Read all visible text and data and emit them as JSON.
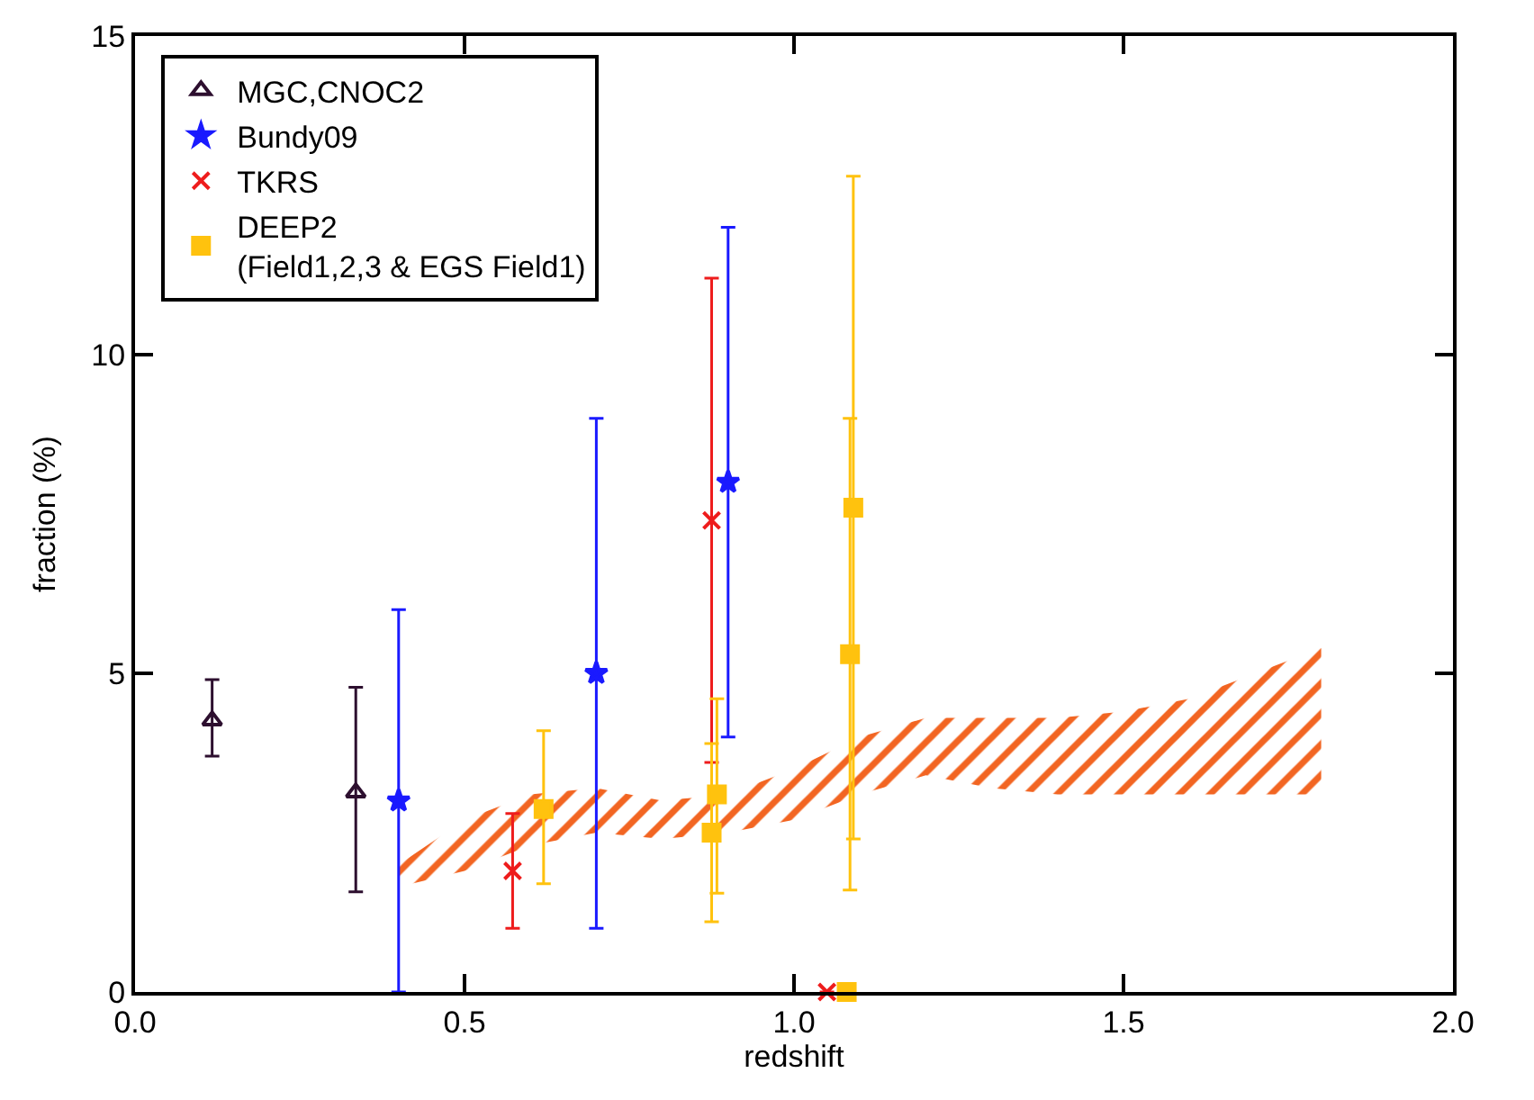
{
  "chart_data": {
    "type": "scatter",
    "xlabel": "redshift",
    "ylabel": "fraction (%)",
    "xlim": [
      0,
      2
    ],
    "ylim": [
      0,
      15
    ],
    "xticks": [
      {
        "value": 0,
        "label": "0.0"
      },
      {
        "value": 0.5,
        "label": "0.5"
      },
      {
        "value": 1,
        "label": "1.0"
      },
      {
        "value": 1.5,
        "label": "1.5"
      },
      {
        "value": 2,
        "label": "2.0"
      }
    ],
    "yticks": [
      0,
      5,
      10,
      15
    ],
    "legend": "top left",
    "series": [
      {
        "type": "line",
        "color": "#f26522",
        "x": [
          0.4,
          0.5,
          0.6,
          0.7,
          0.8,
          0.9,
          1.0,
          1.1,
          1.2,
          1.3,
          1.4,
          1.5,
          1.6,
          1.7,
          1.8
        ],
        "values": [
          null,
          null,
          null,
          null,
          null,
          null,
          null,
          null,
          null,
          null,
          null,
          null,
          null,
          null,
          null
        ],
        "upper": [
          2.0,
          2.7,
          3.1,
          3.2,
          3.0,
          3.1,
          3.5,
          4.0,
          4.3,
          4.3,
          4.3,
          4.4,
          4.6,
          5.0,
          5.4
        ],
        "lower": [
          1.65,
          1.9,
          2.3,
          2.5,
          2.4,
          2.5,
          2.7,
          3.1,
          3.4,
          3.2,
          3.1,
          3.1,
          3.1,
          3.1,
          3.1
        ]
      },
      {
        "name": "MGC,CNOC2",
        "color": "#2d0f2f",
        "marker": "triangle",
        "x": [
          0.117,
          0.335
        ],
        "values": [
          4.26,
          3.13
        ],
        "errors": [
          [
            3.7,
            4.9
          ],
          [
            1.57,
            4.78
          ]
        ]
      },
      {
        "name": "Bundy09",
        "color": "#1a1aff",
        "marker": "star",
        "x": [
          0.4,
          0.7,
          0.9
        ],
        "values": [
          3.0,
          5.0,
          8.0
        ],
        "errors": [
          [
            0,
            6.0
          ],
          [
            1.0,
            9.0
          ],
          [
            4.0,
            12.0
          ]
        ]
      },
      {
        "name": "TKRS",
        "color": "#ee1c1c",
        "marker": "cross",
        "x": [
          0.573,
          0.875,
          1.05
        ],
        "values": [
          1.9,
          7.4,
          0
        ],
        "errors": [
          [
            1.0,
            2.8
          ],
          [
            3.6,
            11.2
          ],
          null
        ]
      },
      {
        "name": "DEEP2\n(Field1,2,3 & EGS Field1)",
        "color": "#ffc20e",
        "marker": "square",
        "x": [
          0.62,
          0.875,
          0.883,
          1.085,
          1.09,
          1.08
        ],
        "values": [
          2.87,
          2.5,
          3.1,
          5.3,
          7.6,
          0
        ],
        "errors": [
          [
            1.7,
            4.1
          ],
          [
            1.1,
            3.9
          ],
          [
            1.55,
            4.6
          ],
          [
            1.6,
            9.0
          ],
          [
            2.4,
            12.8
          ],
          null
        ]
      }
    ]
  }
}
